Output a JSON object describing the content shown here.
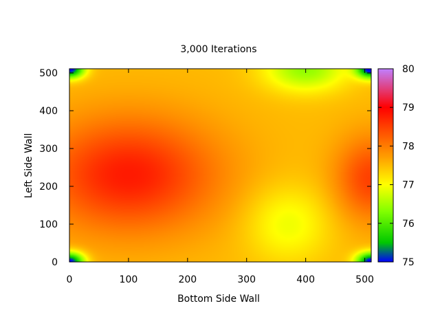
{
  "chart_data": {
    "type": "heatmap",
    "title": "3,000 Iterations",
    "xlabel": "Bottom Side Wall",
    "ylabel": "Left Side Wall",
    "xlim": [
      0,
      511
    ],
    "ylim": [
      0,
      511
    ],
    "x_ticks": [
      0,
      100,
      200,
      300,
      400,
      500
    ],
    "y_ticks": [
      0,
      100,
      200,
      300,
      400,
      500
    ],
    "colorbar": {
      "range": [
        75,
        80
      ],
      "ticks": [
        75,
        76,
        77,
        78,
        79,
        80
      ],
      "stops": [
        {
          "value": 75.0,
          "color": "#0000ff"
        },
        {
          "value": 75.5,
          "color": "#00c800"
        },
        {
          "value": 76.3,
          "color": "#80ff00"
        },
        {
          "value": 77.0,
          "color": "#ffff00"
        },
        {
          "value": 77.7,
          "color": "#ffa000"
        },
        {
          "value": 78.5,
          "color": "#ff4000"
        },
        {
          "value": 79.0,
          "color": "#ff0000"
        },
        {
          "value": 80.0,
          "color": "#c080ff"
        }
      ]
    },
    "field": {
      "base": 77.5,
      "hot_spots": [
        {
          "x": 100,
          "y": 230,
          "sx": 150,
          "sy": 150,
          "amp": 1.3
        },
        {
          "x": 511,
          "y": 220,
          "sx": 60,
          "sy": 110,
          "amp": 1.0
        }
      ],
      "cool_spots": [
        {
          "x": 370,
          "y": 100,
          "sx": 70,
          "sy": 100,
          "amp": 0.6
        },
        {
          "x": 400,
          "y": 511,
          "sx": 70,
          "sy": 60,
          "amp": 1.1
        },
        {
          "x": 0,
          "y": 0,
          "sx": 25,
          "sy": 25,
          "amp": 2.6
        },
        {
          "x": 0,
          "y": 511,
          "sx": 25,
          "sy": 25,
          "amp": 2.6
        },
        {
          "x": 511,
          "y": 0,
          "sx": 25,
          "sy": 25,
          "amp": 2.6
        },
        {
          "x": 511,
          "y": 511,
          "sx": 25,
          "sy": 25,
          "amp": 2.6
        }
      ]
    }
  }
}
